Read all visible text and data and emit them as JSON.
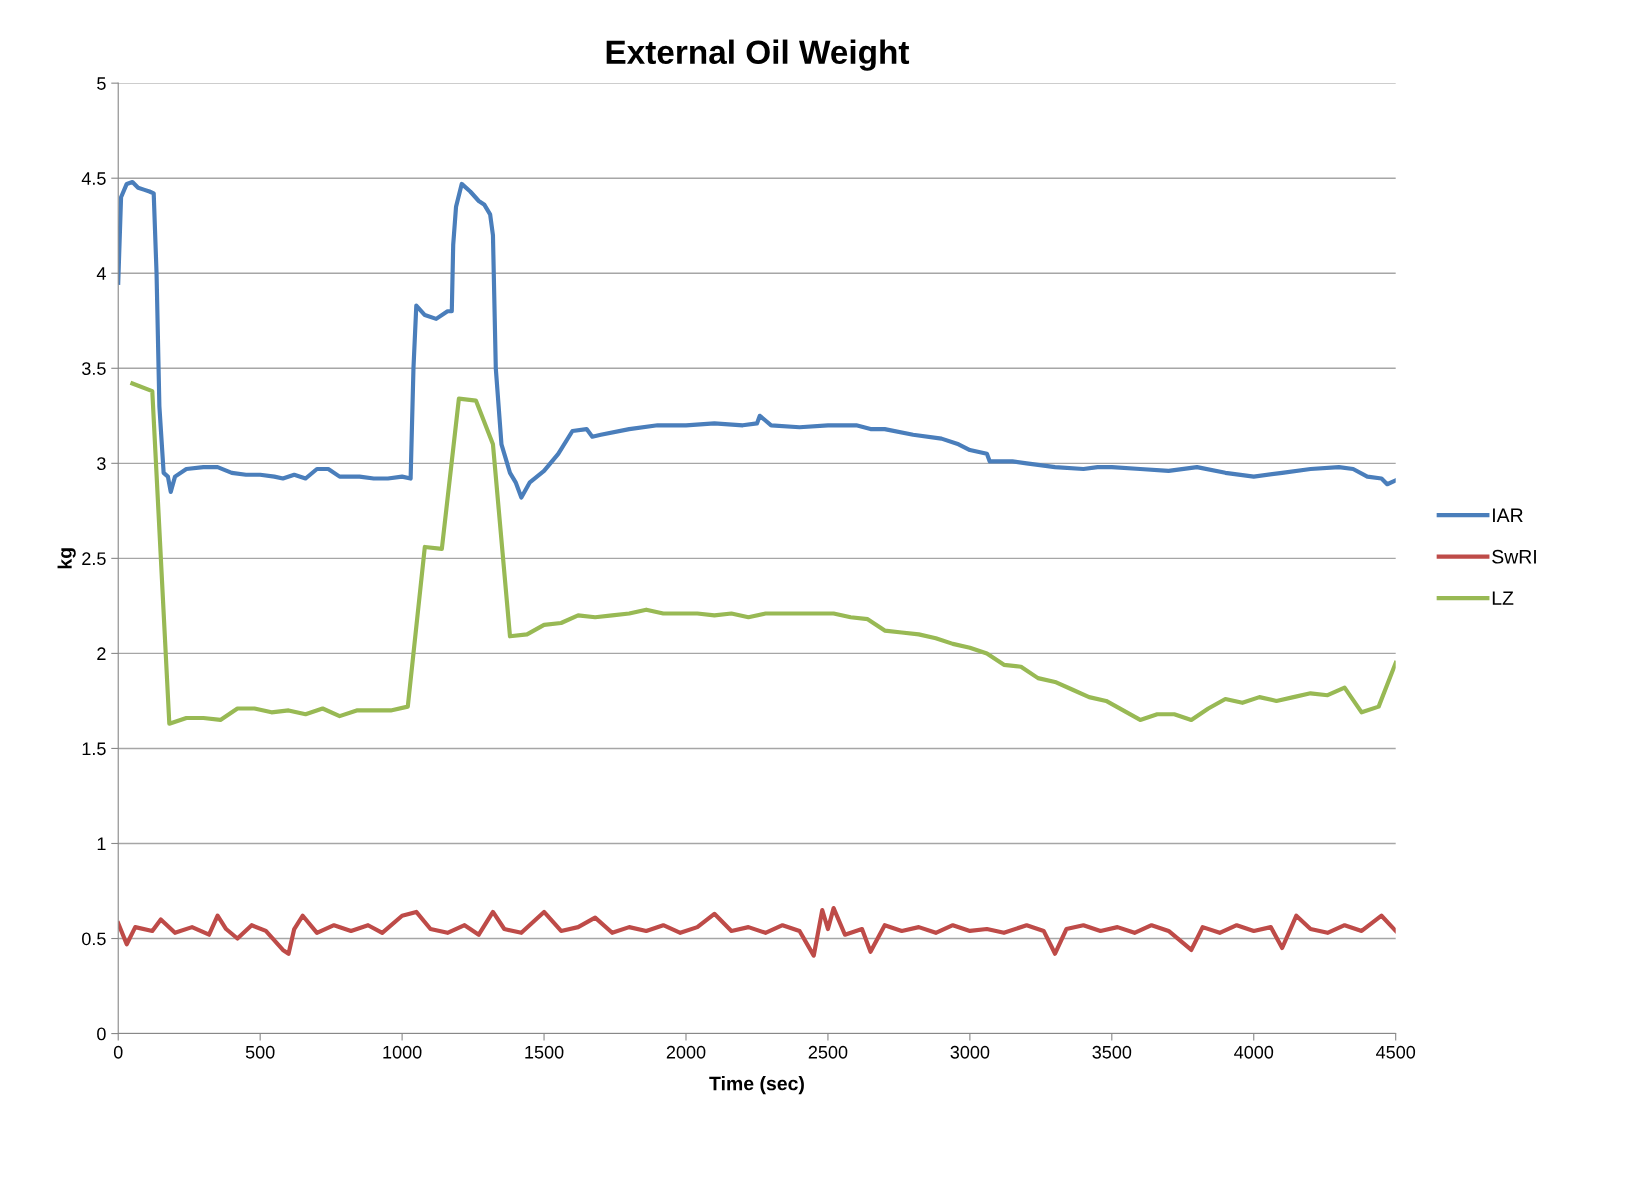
{
  "chart_data": {
    "type": "line",
    "title": "External Oil Weight",
    "xlabel": "Time (sec)",
    "ylabel": "kg",
    "xlim": [
      0,
      4500
    ],
    "xticks": [
      0,
      500,
      1000,
      1500,
      2000,
      2500,
      3000,
      3500,
      4000,
      4500
    ],
    "ylim": [
      0,
      5
    ],
    "yticks": [
      0,
      0.5,
      1,
      1.5,
      2,
      2.5,
      3,
      3.5,
      4,
      4.5,
      5
    ],
    "grid": "y",
    "legend": "right",
    "marker": "none",
    "line_style": "solid",
    "series": [
      {
        "name": "IAR",
        "color": "#4a7ebb",
        "x": [
          0,
          10,
          30,
          50,
          70,
          90,
          110,
          125,
          135,
          145,
          160,
          175,
          185,
          200,
          240,
          300,
          350,
          400,
          450,
          500,
          550,
          580,
          620,
          660,
          700,
          740,
          780,
          850,
          900,
          950,
          1000,
          1030,
          1040,
          1050,
          1080,
          1120,
          1160,
          1175,
          1180,
          1190,
          1210,
          1240,
          1270,
          1290,
          1310,
          1320,
          1330,
          1350,
          1380,
          1400,
          1420,
          1450,
          1500,
          1550,
          1600,
          1650,
          1670,
          1700,
          1800,
          1900,
          2000,
          2100,
          2200,
          2250,
          2260,
          2300,
          2400,
          2500,
          2600,
          2650,
          2700,
          2800,
          2900,
          2960,
          3000,
          3060,
          3070,
          3150,
          3200,
          3300,
          3400,
          3450,
          3500,
          3600,
          3700,
          3800,
          3900,
          4000,
          4100,
          4200,
          4300,
          4350,
          4400,
          4450,
          4470,
          4500
        ],
        "values": [
          3.95,
          4.4,
          4.47,
          4.48,
          4.45,
          4.44,
          4.43,
          4.42,
          4.0,
          3.3,
          2.95,
          2.93,
          2.85,
          2.93,
          2.97,
          2.98,
          2.98,
          2.95,
          2.94,
          2.94,
          2.93,
          2.92,
          2.94,
          2.92,
          2.97,
          2.97,
          2.93,
          2.93,
          2.92,
          2.92,
          2.93,
          2.92,
          3.5,
          3.83,
          3.78,
          3.76,
          3.8,
          3.8,
          4.15,
          4.35,
          4.47,
          4.43,
          4.38,
          4.36,
          4.31,
          4.2,
          3.5,
          3.1,
          2.95,
          2.9,
          2.82,
          2.9,
          2.96,
          3.05,
          3.17,
          3.18,
          3.14,
          3.15,
          3.18,
          3.2,
          3.2,
          3.21,
          3.2,
          3.21,
          3.25,
          3.2,
          3.19,
          3.2,
          3.2,
          3.18,
          3.18,
          3.15,
          3.13,
          3.1,
          3.07,
          3.05,
          3.01,
          3.01,
          3.0,
          2.98,
          2.97,
          2.98,
          2.98,
          2.97,
          2.96,
          2.98,
          2.95,
          2.93,
          2.95,
          2.97,
          2.98,
          2.97,
          2.93,
          2.92,
          2.89,
          2.91
        ]
      },
      {
        "name": "SwRI",
        "color": "#be4b48",
        "x": [
          0,
          30,
          60,
          120,
          150,
          200,
          260,
          320,
          350,
          380,
          420,
          470,
          520,
          580,
          600,
          620,
          650,
          700,
          760,
          820,
          880,
          930,
          1000,
          1050,
          1100,
          1160,
          1220,
          1270,
          1320,
          1360,
          1420,
          1500,
          1560,
          1620,
          1680,
          1740,
          1800,
          1860,
          1920,
          1980,
          2040,
          2100,
          2160,
          2220,
          2280,
          2340,
          2400,
          2450,
          2480,
          2500,
          2520,
          2560,
          2620,
          2650,
          2700,
          2760,
          2820,
          2880,
          2940,
          3000,
          3060,
          3120,
          3200,
          3260,
          3300,
          3340,
          3400,
          3460,
          3520,
          3580,
          3640,
          3700,
          3780,
          3820,
          3880,
          3940,
          4000,
          4060,
          4100,
          4150,
          4200,
          4260,
          4320,
          4380,
          4450,
          4500
        ],
        "values": [
          0.58,
          0.47,
          0.56,
          0.54,
          0.6,
          0.53,
          0.56,
          0.52,
          0.62,
          0.55,
          0.5,
          0.57,
          0.54,
          0.44,
          0.42,
          0.55,
          0.62,
          0.53,
          0.57,
          0.54,
          0.57,
          0.53,
          0.62,
          0.64,
          0.55,
          0.53,
          0.57,
          0.52,
          0.64,
          0.55,
          0.53,
          0.64,
          0.54,
          0.56,
          0.61,
          0.53,
          0.56,
          0.54,
          0.57,
          0.53,
          0.56,
          0.63,
          0.54,
          0.56,
          0.53,
          0.57,
          0.54,
          0.41,
          0.65,
          0.55,
          0.66,
          0.52,
          0.55,
          0.43,
          0.57,
          0.54,
          0.56,
          0.53,
          0.57,
          0.54,
          0.55,
          0.53,
          0.57,
          0.54,
          0.42,
          0.55,
          0.57,
          0.54,
          0.56,
          0.53,
          0.57,
          0.54,
          0.44,
          0.56,
          0.53,
          0.57,
          0.54,
          0.56,
          0.45,
          0.62,
          0.55,
          0.53,
          0.57,
          0.54,
          0.62,
          0.54
        ]
      },
      {
        "name": "LZ",
        "color": "#98b954",
        "x": [
          50,
          120,
          180,
          240,
          300,
          360,
          420,
          480,
          540,
          600,
          660,
          720,
          780,
          840,
          900,
          960,
          1020,
          1080,
          1140,
          1200,
          1260,
          1320,
          1380,
          1440,
          1500,
          1560,
          1620,
          1680,
          1740,
          1800,
          1860,
          1920,
          1980,
          2040,
          2100,
          2160,
          2220,
          2280,
          2340,
          2400,
          2460,
          2520,
          2580,
          2640,
          2700,
          2760,
          2820,
          2880,
          2940,
          3000,
          3060,
          3120,
          3180,
          3240,
          3300,
          3360,
          3420,
          3480,
          3540,
          3600,
          3660,
          3720,
          3780,
          3840,
          3900,
          3960,
          4020,
          4080,
          4140,
          4200,
          4260,
          4320,
          4380,
          4440,
          4500
        ],
        "values": [
          3.42,
          3.38,
          1.63,
          1.66,
          1.66,
          1.65,
          1.71,
          1.71,
          1.69,
          1.7,
          1.68,
          1.71,
          1.67,
          1.7,
          1.7,
          1.7,
          1.72,
          2.56,
          2.55,
          3.34,
          3.33,
          3.1,
          2.09,
          2.1,
          2.15,
          2.16,
          2.2,
          2.19,
          2.2,
          2.21,
          2.23,
          2.21,
          2.21,
          2.21,
          2.2,
          2.21,
          2.19,
          2.21,
          2.21,
          2.21,
          2.21,
          2.21,
          2.19,
          2.18,
          2.12,
          2.11,
          2.1,
          2.08,
          2.05,
          2.03,
          2.0,
          1.94,
          1.93,
          1.87,
          1.85,
          1.81,
          1.77,
          1.75,
          1.7,
          1.65,
          1.68,
          1.68,
          1.65,
          1.71,
          1.76,
          1.74,
          1.77,
          1.75,
          1.77,
          1.79,
          1.78,
          1.82,
          1.69,
          1.72,
          1.95
        ]
      }
    ]
  }
}
